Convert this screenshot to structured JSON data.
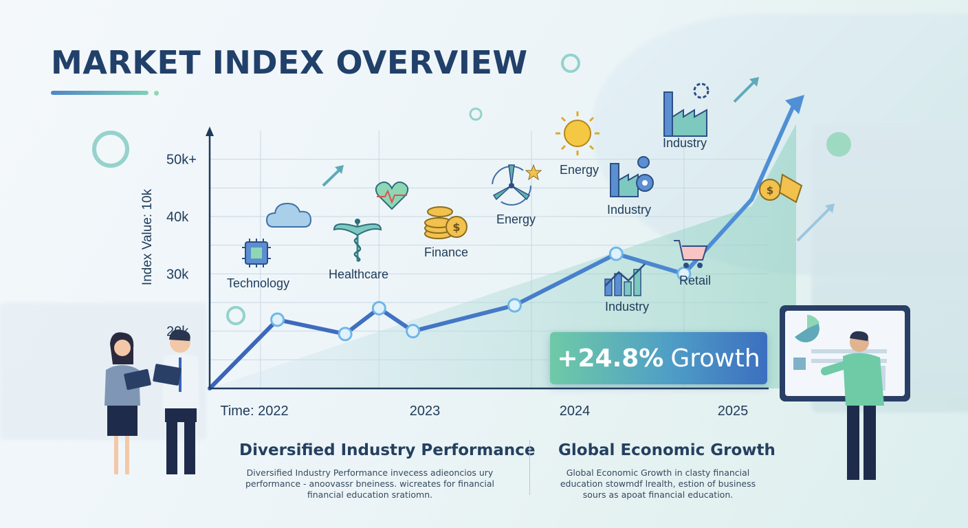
{
  "page": {
    "title": "MARKET INDEX OVERVIEW"
  },
  "chart_data": {
    "type": "line",
    "y_ticks": [
      "20k",
      "30k",
      "40k",
      "50k+"
    ],
    "x_ticks": [
      "Time: 2022",
      "2023",
      "2024",
      "2025"
    ],
    "ylabel": "Index Value: 10k",
    "ylim": [
      10000,
      55000
    ],
    "x": [
      "2022",
      "2022.4",
      "2022.8",
      "2023",
      "2023.2",
      "2023.8",
      "2024.4",
      "2024.8",
      "2025.2"
    ],
    "values": [
      10000,
      22000,
      19500,
      24000,
      20000,
      24500,
      33500,
      30000,
      43000
    ],
    "trend_arrow": true,
    "grid": true,
    "colors": {
      "line": "#3f6fc2",
      "area_start": "#cfe3f3",
      "area_end": "#8fd3c2"
    },
    "annotations": [
      {
        "label": "Technology",
        "icon": "chip-icon"
      },
      {
        "label": "Healthcare",
        "icon": "caduceus-icon"
      },
      {
        "label": "Finance",
        "icon": "coins-icon"
      },
      {
        "label": "Energy",
        "icon": "wind-turbine-icon"
      },
      {
        "label": "Energy",
        "icon": "sun-icon"
      },
      {
        "label": "Industry",
        "icon": "factory-gear-icon"
      },
      {
        "label": "Industry",
        "icon": "factory-icon"
      },
      {
        "label": "Industry",
        "icon": "bar-growth-icon"
      },
      {
        "label": "Retail",
        "icon": "cart-icon"
      }
    ]
  },
  "callout": {
    "value": "+24.8%",
    "label": "Growth"
  },
  "sections": [
    {
      "heading": "Diversified Industry Performance",
      "lines": [
        "Diversified Industry Performance invecess adieoncios ury",
        "performance - anoovassr bneiness. wicreates for financial",
        "financial education sratiomn."
      ]
    },
    {
      "heading": "Global Economic Growth",
      "lines": [
        "Global Economic Growth in clasty financial",
        "education stowmdf lrealth, estion of business",
        "sours as apoat financial education."
      ]
    }
  ]
}
